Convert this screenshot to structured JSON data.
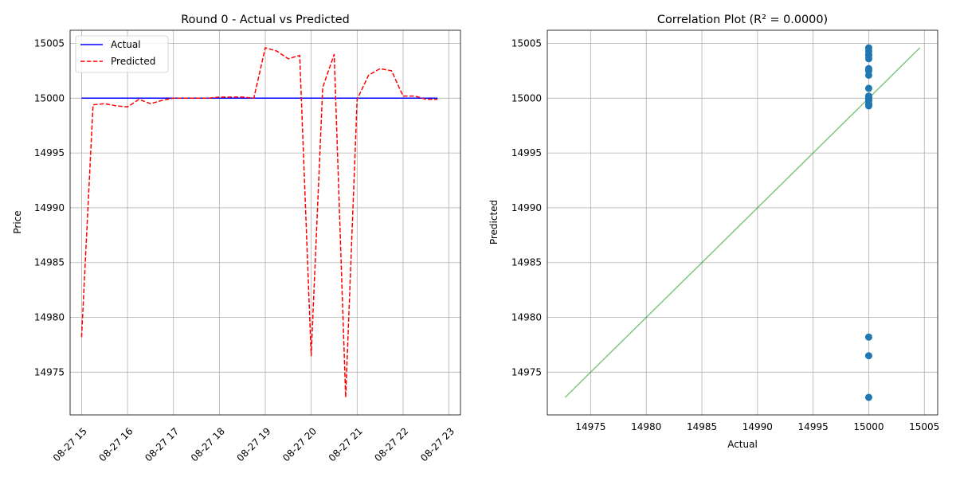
{
  "chart_data": [
    {
      "type": "line",
      "title": "Round 0 - Actual vs Predicted",
      "xlabel": "",
      "ylabel": "Price",
      "x_tick_labels": [
        "08-27 15",
        "08-27 16",
        "08-27 17",
        "08-27 18",
        "08-27 19",
        "08-27 20",
        "08-27 21",
        "08-27 22",
        "08-27 23"
      ],
      "y_ticks": [
        14975,
        14980,
        14985,
        14990,
        14995,
        15000,
        15005
      ],
      "x_range_hours": [
        14.75,
        23.25
      ],
      "ylim": [
        14971.1,
        15006.2
      ],
      "grid": true,
      "legend": "upper-left",
      "series": [
        {
          "name": "Actual",
          "color": "#0000ff",
          "style": "solid",
          "x_hours": [
            15.0,
            22.75
          ],
          "values": [
            15000.0,
            15000.0
          ]
        },
        {
          "name": "Predicted",
          "color": "#ff0000",
          "style": "dashed",
          "x_hours": [
            15.0,
            15.25,
            15.5,
            15.75,
            16.0,
            16.25,
            16.5,
            16.75,
            17.0,
            17.25,
            17.5,
            17.75,
            18.0,
            18.25,
            18.5,
            18.75,
            19.0,
            19.25,
            19.5,
            19.75,
            20.0,
            20.25,
            20.5,
            20.75,
            21.0,
            21.25,
            21.5,
            21.75,
            22.0,
            22.25,
            22.5,
            22.75
          ],
          "values": [
            14978.2,
            14999.4,
            14999.5,
            14999.3,
            14999.2,
            14999.9,
            14999.5,
            14999.8,
            15000.0,
            15000.0,
            15000.0,
            15000.0,
            15000.1,
            15000.1,
            15000.1,
            15000.0,
            15004.6,
            15004.3,
            15003.6,
            15003.9,
            14976.5,
            15001.0,
            15004.0,
            14972.7,
            14999.9,
            15002.1,
            15002.7,
            15002.5,
            15000.2,
            15000.2,
            14999.9,
            14999.9
          ]
        }
      ]
    },
    {
      "type": "scatter",
      "title": "Correlation Plot (R² = 0.0000)",
      "xlabel": "Actual",
      "ylabel": "Predicted",
      "x_ticks": [
        14975,
        14980,
        14985,
        14990,
        14995,
        15000,
        15005
      ],
      "y_ticks": [
        14975,
        14980,
        14985,
        14990,
        14995,
        15000,
        15005
      ],
      "xlim": [
        14971.1,
        15006.2
      ],
      "ylim": [
        14971.1,
        15006.2
      ],
      "grid": true,
      "point_color": "#1f77b4",
      "line_color": "#2ca02c",
      "reference_line": {
        "x": [
          14972.7,
          15004.6
        ],
        "y": [
          14972.7,
          15004.6
        ]
      },
      "points": {
        "x": [
          15000,
          15000,
          15000,
          15000,
          15000,
          15000,
          15000,
          15000,
          15000,
          15000,
          15000,
          15000,
          15000,
          15000,
          15000,
          15000,
          15000,
          15000,
          15000,
          15000
        ],
        "y": [
          14978.2,
          14976.5,
          14972.7,
          14999.3,
          14999.5,
          14999.8,
          15000.0,
          15000.1,
          15000.2,
          15000.9,
          15002.1,
          15002.5,
          15002.7,
          15003.6,
          15003.9,
          15004.0,
          15004.3,
          15004.6,
          14999.9,
          14999.4
        ]
      }
    }
  ]
}
